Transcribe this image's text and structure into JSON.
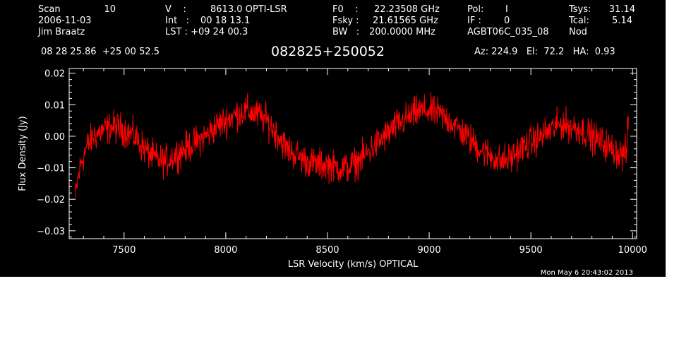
{
  "header": {
    "scan_label": "Scan",
    "scan_value": "10",
    "date": "2006-11-03",
    "observer": "Jim Braatz",
    "v_label": "V    :",
    "v_value": "8613.0 OPTI-LSR",
    "int_label": "Int   :",
    "int_value": "00 18 13.1",
    "lst_label": "LST : +09 24 00.3",
    "f0_label": "F0    :",
    "f0_value": "22.23508 GHz",
    "fsky_label": "Fsky :",
    "fsky_value": "21.61565 GHz",
    "bw_label": "BW   :",
    "bw_value": "200.0000 MHz",
    "pol_label": "Pol:",
    "pol_value": "I",
    "if_label": "IF :",
    "if_value": "0",
    "project": "AGBT06C_035_08",
    "tsys_label": "Tsys:",
    "tsys_value": "31.14",
    "tcal_label": "Tcal:",
    "tcal_value": "5.14",
    "proc": "Nod",
    "coords": "08 28 25.86  +25 00 52.5",
    "source": "082825+250052",
    "az_el_ha": "Az: 224.9   El:  72.2   HA:  0.93",
    "timestamp": "Mon May  6 20:43:02 2013"
  },
  "colors": {
    "background": "#000000",
    "axes": "#ffffff",
    "trace": "#ff0000"
  },
  "chart_data": {
    "type": "line",
    "title": "",
    "xlabel": "LSR Velocity (km/s) OPTICAL",
    "ylabel": "Flux Density (Jy)",
    "xlim": [
      7230,
      10020
    ],
    "ylim": [
      -0.0325,
      0.0215
    ],
    "xticks": [
      7500,
      8000,
      8500,
      9000,
      9500,
      10000
    ],
    "yticks": [
      -0.03,
      -0.02,
      -0.01,
      0.0,
      0.01,
      0.02
    ],
    "xtick_labels": [
      "7500",
      "8000",
      "8500",
      "9000",
      "9500",
      "10000"
    ],
    "ytick_labels": [
      "−0.03",
      "−0.02",
      "−0.01",
      "0.00",
      "0.01",
      "0.02"
    ],
    "noise_amplitude": 0.0025,
    "series": [
      {
        "color": "#ff0000",
        "x": [
          7260,
          7270,
          7290,
          7320,
          7350,
          7400,
          7450,
          7500,
          7550,
          7600,
          7650,
          7700,
          7750,
          7800,
          7850,
          7900,
          7950,
          8000,
          8050,
          8100,
          8150,
          8200,
          8250,
          8300,
          8350,
          8400,
          8450,
          8500,
          8550,
          8600,
          8650,
          8700,
          8750,
          8800,
          8850,
          8900,
          8950,
          9000,
          9050,
          9100,
          9150,
          9200,
          9250,
          9300,
          9350,
          9400,
          9450,
          9500,
          9550,
          9600,
          9650,
          9700,
          9750,
          9800,
          9850,
          9900,
          9950,
          9970,
          9980
        ],
        "y": [
          -0.02,
          -0.015,
          -0.008,
          -0.003,
          0.0,
          0.002,
          0.003,
          0.002,
          0.0,
          -0.004,
          -0.007,
          -0.008,
          -0.006,
          -0.004,
          -0.002,
          0.0,
          0.003,
          0.005,
          0.007,
          0.008,
          0.007,
          0.005,
          0.001,
          -0.004,
          -0.006,
          -0.008,
          -0.009,
          -0.009,
          -0.01,
          -0.01,
          -0.008,
          -0.005,
          -0.002,
          0.001,
          0.004,
          0.006,
          0.008,
          0.008,
          0.007,
          0.005,
          0.002,
          -0.001,
          -0.004,
          -0.006,
          -0.008,
          -0.007,
          -0.004,
          -0.002,
          0.0,
          0.002,
          0.004,
          0.003,
          0.002,
          0.0,
          -0.002,
          -0.004,
          -0.006,
          -0.005,
          0.006
        ]
      }
    ]
  }
}
